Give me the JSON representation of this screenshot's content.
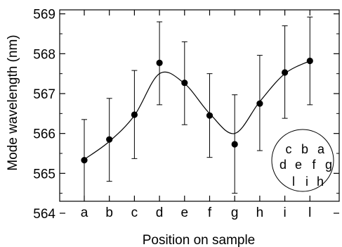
{
  "chart_data": {
    "type": "scatter",
    "xlabel": "Position on sample",
    "ylabel": "Mode wavelength (nm)",
    "categories": [
      "a",
      "b",
      "c",
      "d",
      "e",
      "f",
      "g",
      "h",
      "i",
      "l"
    ],
    "ylim": [
      564.3,
      569.1
    ],
    "yticks": [
      564,
      565,
      566,
      567,
      568,
      569
    ],
    "grid": false,
    "legend": "none",
    "series": [
      {
        "values": [
          565.33,
          565.85,
          566.47,
          567.77,
          567.27,
          566.45,
          565.73,
          566.75,
          567.53,
          567.82
        ],
        "err_low": [
          564.3,
          564.8,
          565.37,
          566.72,
          566.22,
          565.4,
          564.5,
          565.57,
          566.38,
          566.72
        ],
        "err_high": [
          566.35,
          566.88,
          567.58,
          568.8,
          568.3,
          567.5,
          566.97,
          567.96,
          568.7,
          568.92
        ]
      }
    ],
    "fit_curve": {
      "x": [
        "a",
        "b",
        "c",
        "d",
        "e",
        "f",
        "g",
        "h",
        "i",
        "l"
      ],
      "y": [
        565.35,
        565.8,
        566.45,
        567.5,
        567.25,
        566.5,
        566.0,
        566.8,
        567.5,
        567.82
      ]
    },
    "inset": {
      "shape": "circle",
      "position": "lower-right",
      "rows": [
        [
          "c",
          "b",
          "a"
        ],
        [
          "d",
          "e",
          "f",
          "g"
        ],
        [
          "l",
          "i",
          "h"
        ]
      ]
    },
    "colors": {
      "marker": "#000000",
      "line": "#000000"
    }
  }
}
